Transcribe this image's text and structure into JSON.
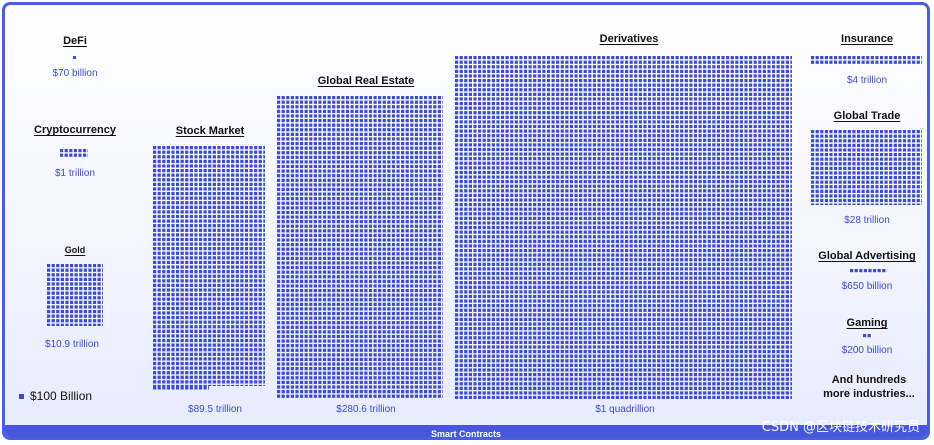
{
  "chart_data": {
    "type": "waffle",
    "unit_label": "$100 Billion",
    "categories": [
      {
        "name": "DeFi",
        "value_label": "$70 billion",
        "value_usd_billions": 70
      },
      {
        "name": "Cryptocurrency",
        "value_label": "$1 trillion",
        "value_usd_billions": 1000
      },
      {
        "name": "Gold",
        "value_label": "$10.9 trillion",
        "value_usd_billions": 10900
      },
      {
        "name": "Stock Market",
        "value_label": "$89.5 trillion",
        "value_usd_billions": 89500
      },
      {
        "name": "Global Real Estate",
        "value_label": "$280.6 trillion",
        "value_usd_billions": 280600
      },
      {
        "name": "Derivatives",
        "value_label": "$1 quadrillion",
        "value_usd_billions": 1000000
      },
      {
        "name": "Insurance",
        "value_label": "$4 trillion",
        "value_usd_billions": 4000
      },
      {
        "name": "Global Trade",
        "value_label": "$28 trillion",
        "value_usd_billions": 28000
      },
      {
        "name": "Global Advertising",
        "value_label": "$650 billion",
        "value_usd_billions": 650
      },
      {
        "name": "Gaming",
        "value_label": "$200 billion",
        "value_usd_billions": 200
      }
    ],
    "footer_note": [
      "And hundreds",
      "more industries..."
    ],
    "bottom_bar": "Smart Contracts",
    "colors": {
      "dot": "#3d4cc8",
      "frame": "#4c5ee0",
      "bar": "#4657dd"
    }
  },
  "watermark": "CSDN @区块链技术研究员"
}
